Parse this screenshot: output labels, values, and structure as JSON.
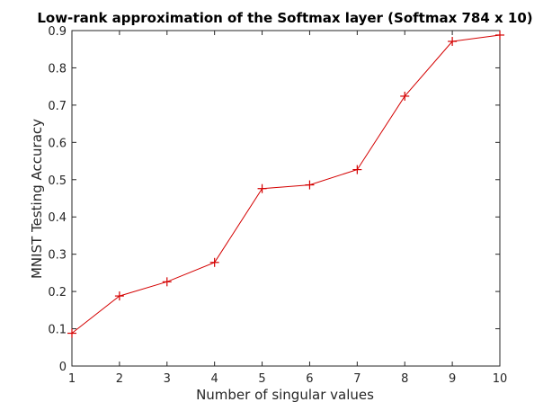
{
  "chart_data": {
    "type": "line",
    "title": "Low-rank approximation of the Softmax layer (Softmax 784 x 10)",
    "xlabel": "Number of singular values",
    "ylabel": "MNIST Testing Accuracy",
    "x": [
      1,
      2,
      3,
      4,
      5,
      6,
      7,
      8,
      9,
      10
    ],
    "series": [
      {
        "values": [
          0.088,
          0.188,
          0.226,
          0.278,
          0.476,
          0.486,
          0.527,
          0.724,
          0.871,
          0.888
        ],
        "color": "#d40000",
        "marker": "plus"
      }
    ],
    "xlim": [
      1,
      10
    ],
    "ylim": [
      0,
      0.9
    ],
    "xticks": [
      "1",
      "2",
      "3",
      "4",
      "5",
      "6",
      "7",
      "8",
      "9",
      "10"
    ],
    "xtick_values": [
      1,
      2,
      3,
      4,
      5,
      6,
      7,
      8,
      9,
      10
    ],
    "yticks": [
      "0",
      "0.1",
      "0.2",
      "0.3",
      "0.4",
      "0.5",
      "0.6",
      "0.7",
      "0.8",
      "0.9"
    ],
    "ytick_values": [
      0,
      0.1,
      0.2,
      0.3,
      0.4,
      0.5,
      0.6,
      0.7,
      0.8,
      0.9
    ],
    "grid": false,
    "legend": "none"
  }
}
